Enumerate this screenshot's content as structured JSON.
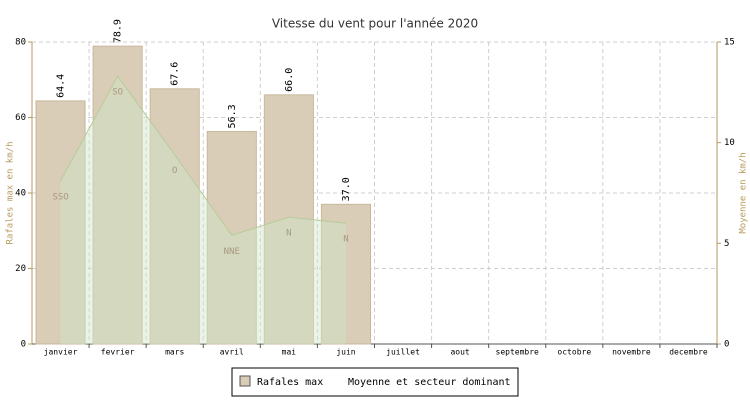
{
  "chart_data": {
    "type": "bar-area",
    "title": "Vitesse du vent pour l'année 2020",
    "categories": [
      "janvier",
      "fevrier",
      "mars",
      "avril",
      "mai",
      "juin",
      "juillet",
      "aout",
      "septembre",
      "octobre",
      "novembre",
      "decembre"
    ],
    "y_label": "Rafales max en km/h",
    "y2_label": "Moyenne en km/h",
    "ylim": [
      0,
      80
    ],
    "yticks": [
      0,
      20,
      40,
      60,
      80
    ],
    "y2lim": [
      0,
      15
    ],
    "y2ticks": [
      0,
      5,
      10,
      15
    ],
    "grid": true,
    "series": [
      {
        "name": "Rafales max",
        "type": "bar",
        "color": "#d9cdb8",
        "values": [
          64.4,
          78.9,
          67.6,
          56.3,
          66.0,
          37.0,
          null,
          null,
          null,
          null,
          null,
          null
        ],
        "value_labels": [
          "64.4",
          "78.9",
          "67.6",
          "56.3",
          "66.0",
          "37.0",
          null,
          null,
          null,
          null,
          null,
          null
        ]
      },
      {
        "name": "Moyenne et secteur dominant",
        "type": "area",
        "axis": "y2",
        "color": "#cfe6c8",
        "values": [
          8.1,
          13.3,
          9.4,
          5.4,
          6.3,
          6.0,
          null,
          null,
          null,
          null,
          null,
          null
        ],
        "directions": [
          "SSO",
          "SO",
          "O",
          "NNE",
          "N",
          "N",
          null,
          null,
          null,
          null,
          null,
          null
        ]
      }
    ]
  }
}
